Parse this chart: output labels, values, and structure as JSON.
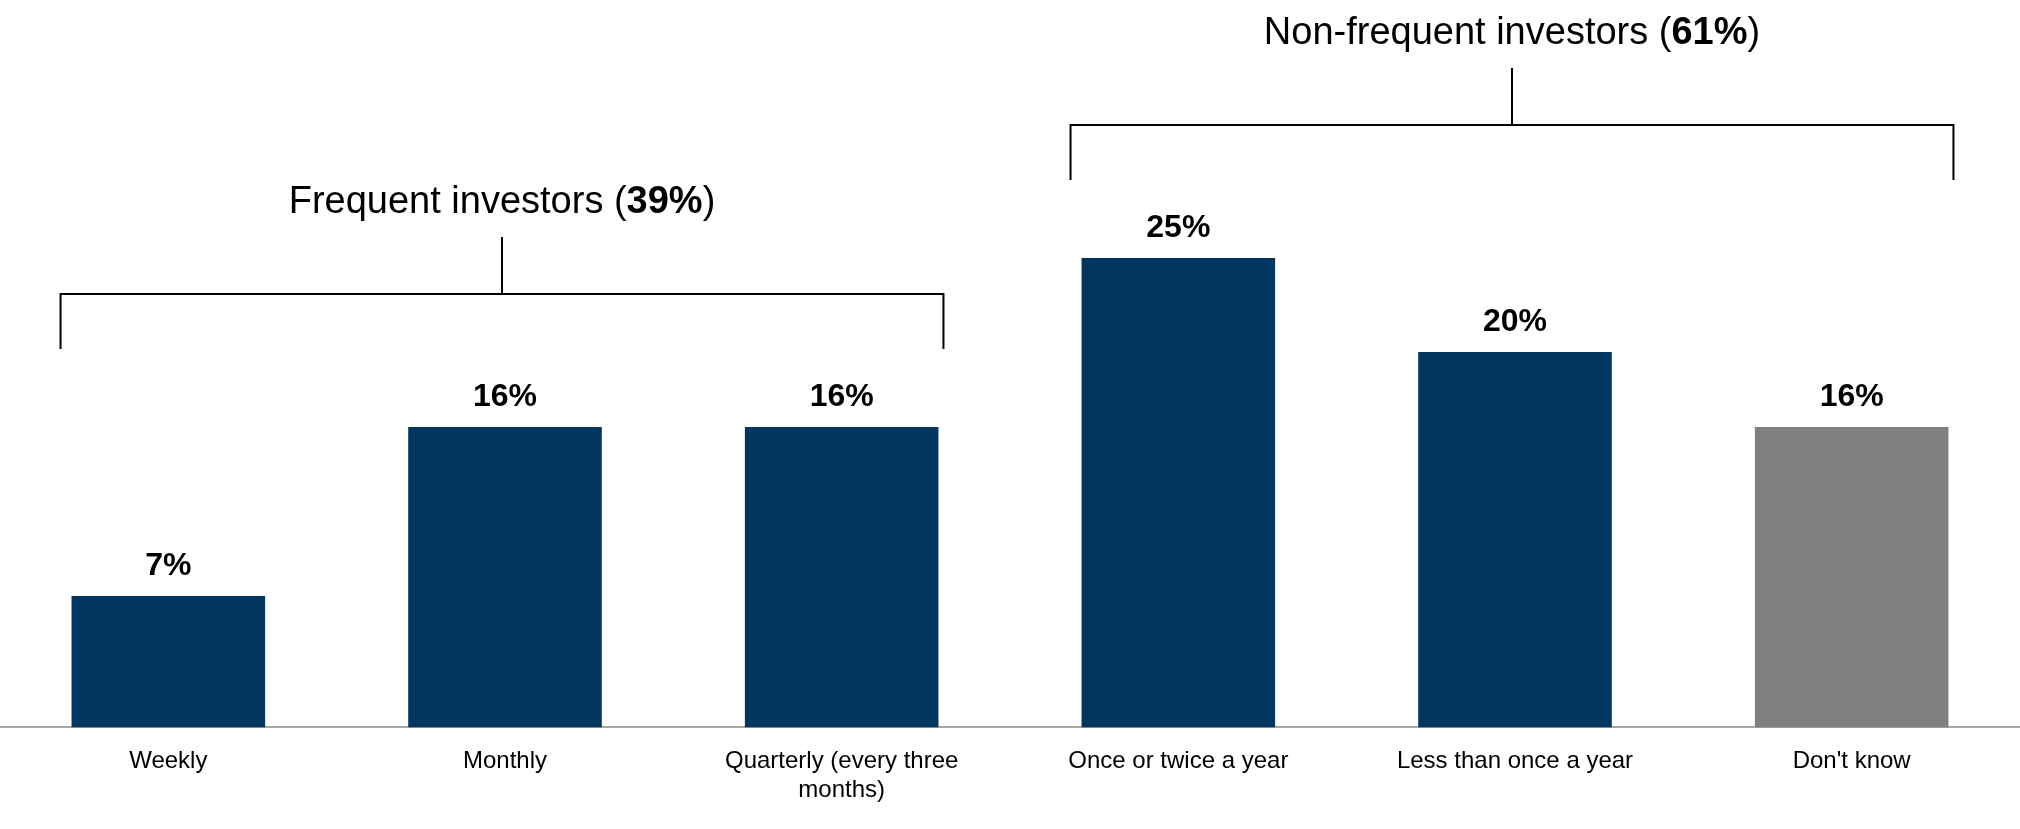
{
  "chart_data": {
    "type": "bar",
    "categories": [
      "Weekly",
      "Monthly",
      "Quarterly (every three months)",
      "Once or twice a year",
      "Less than once a year",
      "Don't know"
    ],
    "values": [
      7,
      16,
      16,
      25,
      20,
      16
    ],
    "colors": [
      "#003660",
      "#003660",
      "#003660",
      "#003660",
      "#003660",
      "#808080"
    ],
    "value_labels": [
      "7%",
      "16%",
      "16%",
      "25%",
      "20%",
      "16%"
    ],
    "annotations": [
      "Frequent investors (39%)",
      "Non-frequent investors (61%)"
    ],
    "legend": false,
    "grid": false
  }
}
